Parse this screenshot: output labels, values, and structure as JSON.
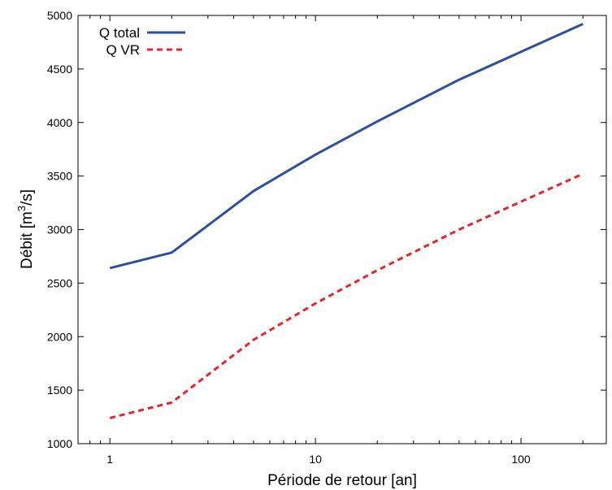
{
  "chart_data": {
    "type": "line",
    "x_scale": "log",
    "xlim": [
      0.7,
      260
    ],
    "ylim": [
      1000,
      5000
    ],
    "xlabel": "Période de retour [an]",
    "ylabel_main": "Débit [m",
    "ylabel_sup": "3",
    "ylabel_end": "/s]",
    "x_ticks": [
      1,
      10,
      100
    ],
    "y_ticks": [
      1000,
      1500,
      2000,
      2500,
      3000,
      3500,
      4000,
      4500,
      5000
    ],
    "grid": false,
    "legend_position": "top-left",
    "series": [
      {
        "name": "Q total",
        "color": "#2c4f9e",
        "style": "solid",
        "x": [
          1,
          2,
          5,
          10,
          20,
          50,
          100,
          200
        ],
        "y": [
          2640,
          2785,
          3360,
          3700,
          4010,
          4400,
          4660,
          4920
        ]
      },
      {
        "name": "Q VR",
        "color": "#e3262c",
        "style": "dashed",
        "x": [
          1,
          2,
          5,
          10,
          20,
          50,
          100,
          200
        ],
        "y": [
          1240,
          1385,
          1970,
          2310,
          2620,
          3000,
          3260,
          3520
        ]
      }
    ]
  }
}
